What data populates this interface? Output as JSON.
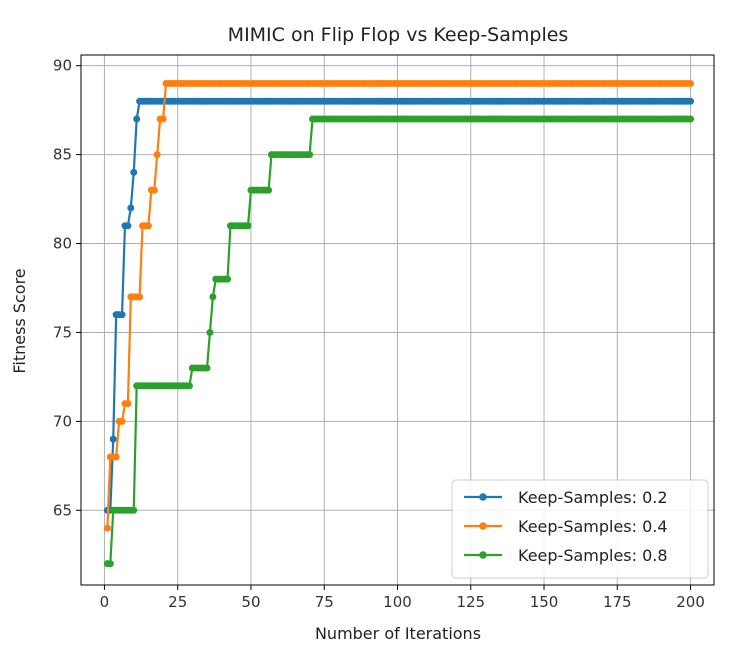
{
  "chart_data": {
    "type": "line",
    "title": "MIMIC on Flip Flop vs Keep-Samples",
    "xlabel": "Number of Iterations",
    "ylabel": "Fitness Score",
    "xlim": [
      -8,
      208
    ],
    "ylim": [
      60.8,
      90.6
    ],
    "xticks": [
      0,
      25,
      50,
      75,
      100,
      125,
      150,
      175,
      200
    ],
    "yticks": [
      65,
      70,
      75,
      80,
      85,
      90
    ],
    "grid": true,
    "legend_position": "bottom-right",
    "series": [
      {
        "name": "Keep-Samples: 0.2",
        "color": "#1f77b4",
        "x": [
          1,
          2,
          3,
          4,
          5,
          6,
          7,
          8,
          9,
          10,
          11,
          12,
          200
        ],
        "y": [
          65,
          65,
          69,
          76,
          76,
          76,
          81,
          81,
          82,
          84,
          87,
          88,
          88
        ]
      },
      {
        "name": "Keep-Samples: 0.4",
        "color": "#ff7f0e",
        "x": [
          1,
          2,
          3,
          4,
          5,
          6,
          7,
          8,
          9,
          10,
          11,
          12,
          13,
          14,
          15,
          16,
          17,
          18,
          19,
          20,
          21,
          200
        ],
        "y": [
          64,
          68,
          68,
          68,
          70,
          70,
          71,
          71,
          77,
          77,
          77,
          77,
          81,
          81,
          81,
          83,
          83,
          85,
          87,
          87,
          89,
          89
        ]
      },
      {
        "name": "Keep-Samples: 0.8",
        "color": "#2ca02c",
        "x": [
          1,
          2,
          3,
          4,
          5,
          6,
          7,
          8,
          9,
          10,
          11,
          12,
          13,
          14,
          15,
          16,
          17,
          18,
          19,
          20,
          21,
          22,
          23,
          24,
          25,
          26,
          27,
          28,
          29,
          30,
          31,
          32,
          33,
          34,
          35,
          36,
          37,
          38,
          39,
          40,
          41,
          42,
          43,
          44,
          45,
          46,
          47,
          48,
          49,
          50,
          51,
          52,
          53,
          54,
          55,
          56,
          57,
          58,
          59,
          60,
          61,
          62,
          63,
          64,
          65,
          66,
          67,
          68,
          69,
          70,
          71,
          200
        ],
        "y": [
          62,
          62,
          65,
          65,
          65,
          65,
          65,
          65,
          65,
          65,
          72,
          72,
          72,
          72,
          72,
          72,
          72,
          72,
          72,
          72,
          72,
          72,
          72,
          72,
          72,
          72,
          72,
          72,
          72,
          73,
          73,
          73,
          73,
          73,
          73,
          75,
          77,
          78,
          78,
          78,
          78,
          78,
          81,
          81,
          81,
          81,
          81,
          81,
          81,
          83,
          83,
          83,
          83,
          83,
          83,
          83,
          85,
          85,
          85,
          85,
          85,
          85,
          85,
          85,
          85,
          85,
          85,
          85,
          85,
          85,
          87,
          87
        ]
      }
    ]
  }
}
